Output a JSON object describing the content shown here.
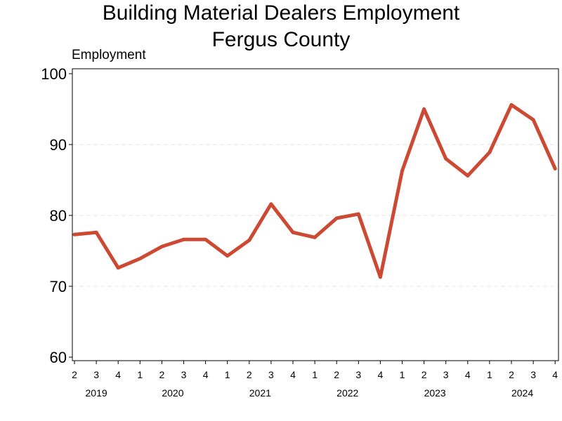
{
  "chart_data": {
    "type": "line",
    "title": "Building Material Dealers Employment",
    "subtitle": "Fergus County",
    "ylabel": "Employment",
    "xlabel": "",
    "ylim": [
      60,
      100
    ],
    "yticks": [
      60,
      70,
      80,
      90,
      100
    ],
    "grid": "horizontal dashed",
    "legend": "none",
    "color": "#cc4a34",
    "x": [
      "2019 Q2",
      "2019 Q3",
      "2019 Q4",
      "2020 Q1",
      "2020 Q2",
      "2020 Q3",
      "2020 Q4",
      "2021 Q1",
      "2021 Q2",
      "2021 Q3",
      "2021 Q4",
      "2022 Q1",
      "2022 Q2",
      "2022 Q3",
      "2022 Q4",
      "2023 Q1",
      "2023 Q2",
      "2023 Q3",
      "2023 Q4",
      "2024 Q1",
      "2024 Q2",
      "2024 Q3",
      "2024 Q4"
    ],
    "quarter_labels": [
      "2",
      "3",
      "4",
      "1",
      "2",
      "3",
      "4",
      "1",
      "2",
      "3",
      "4",
      "1",
      "2",
      "3",
      "4",
      "1",
      "2",
      "3",
      "4",
      "1",
      "2",
      "3",
      "4"
    ],
    "year_labels": [
      "2019",
      "2020",
      "2021",
      "2022",
      "2023",
      "2024"
    ],
    "series": [
      {
        "values": [
          77.3,
          77.6,
          72.6,
          73.9,
          75.6,
          76.6,
          76.6,
          74.3,
          76.5,
          81.6,
          77.6,
          76.9,
          79.6,
          80.2,
          71.3,
          86.3,
          95.0,
          88.0,
          85.6,
          88.9,
          95.6,
          93.5,
          86.6
        ]
      }
    ]
  }
}
